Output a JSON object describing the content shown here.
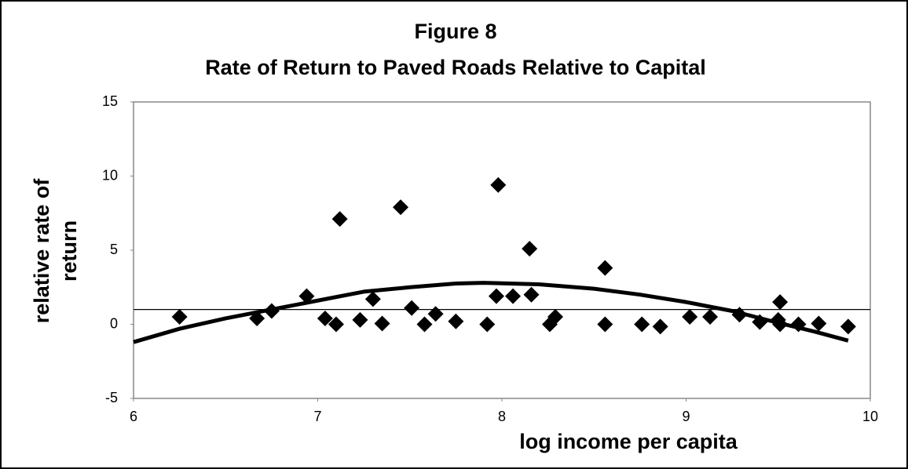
{
  "chart_data": {
    "type": "scatter",
    "title": "Figure 8",
    "subtitle": "Rate of Return to Paved Roads Relative to Capital",
    "x_label": "log income per capita",
    "y_label": [
      "relative rate of",
      "return"
    ],
    "xlim": [
      6,
      10
    ],
    "ylim": [
      -5,
      15
    ],
    "xticks": [
      6,
      7,
      8,
      9,
      10
    ],
    "yticks": [
      -5,
      0,
      5,
      10,
      15
    ],
    "reference_line": 1,
    "color": "#000000",
    "x": [
      6.25,
      6.67,
      6.75,
      6.94,
      7.04,
      7.1,
      7.12,
      7.23,
      7.3,
      7.35,
      7.45,
      7.51,
      7.58,
      7.64,
      7.75,
      7.92,
      7.97,
      7.98,
      8.06,
      8.15,
      8.16,
      8.26,
      8.29,
      8.56,
      8.56,
      8.76,
      8.86,
      9.02,
      9.13,
      9.29,
      9.4,
      9.5,
      9.51,
      9.51,
      9.61,
      9.72,
      9.88
    ],
    "values": [
      0.5,
      0.4,
      0.9,
      1.9,
      0.4,
      0,
      7.1,
      0.3,
      1.7,
      0.05,
      7.9,
      1.1,
      0,
      0.7,
      0.2,
      0,
      1.9,
      9.4,
      1.9,
      5.1,
      2.0,
      0,
      0.5,
      3.8,
      0,
      0,
      -0.15,
      0.5,
      0.5,
      0.65,
      0.15,
      0.3,
      1.5,
      0,
      0,
      0.05,
      -0.15
    ],
    "fit": {
      "x": [
        6.0,
        6.25,
        6.5,
        6.75,
        7.0,
        7.25,
        7.5,
        7.75,
        7.9,
        8.2,
        8.5,
        8.75,
        9.0,
        9.25,
        9.5,
        9.7,
        9.88
      ],
      "values": [
        -1.2,
        -0.3,
        0.4,
        1.0,
        1.6,
        2.2,
        2.5,
        2.75,
        2.8,
        2.7,
        2.4,
        2.0,
        1.5,
        0.9,
        0.1,
        -0.5,
        -1.1
      ]
    }
  }
}
